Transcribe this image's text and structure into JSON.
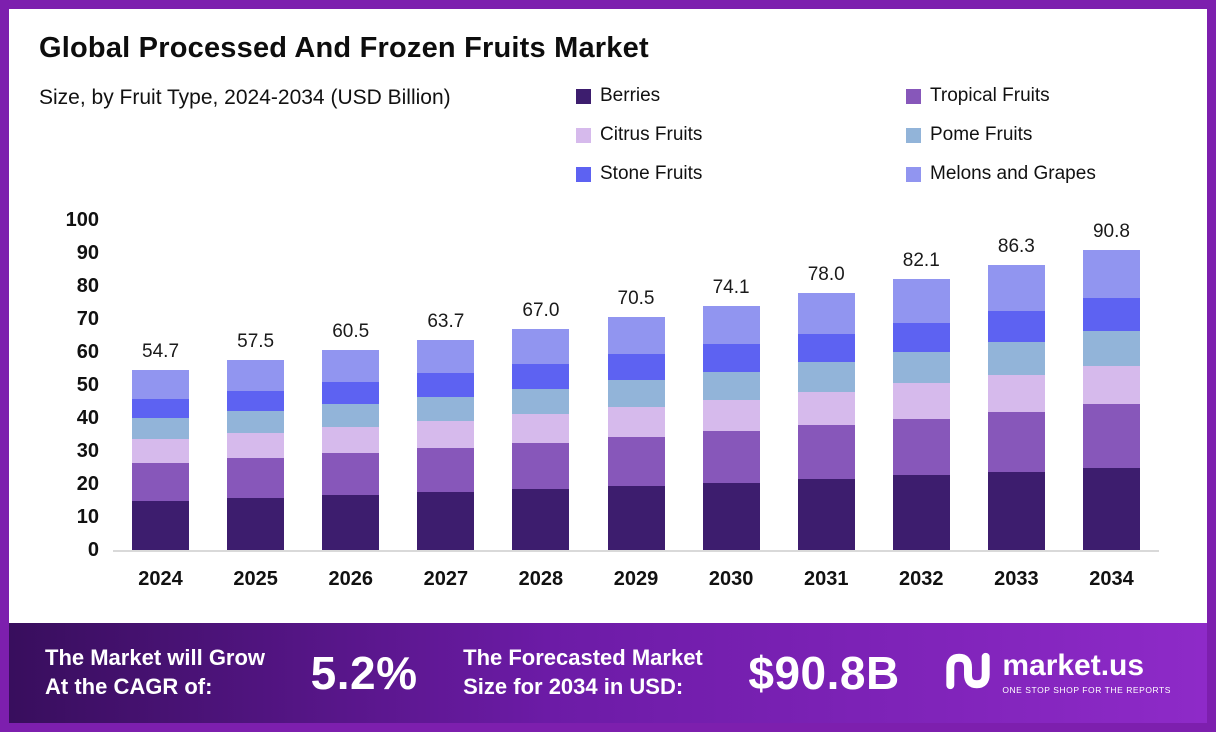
{
  "page": {
    "frame_color": "#7d1fae",
    "background": "#ffffff"
  },
  "header": {
    "title": "Global Processed And Frozen Fruits Market",
    "subtitle": "Size, by Fruit Type, 2024-2034 (USD Billion)"
  },
  "legend": {
    "items": [
      {
        "label": "Berries",
        "color": "#3d1d6e"
      },
      {
        "label": "Tropical Fruits",
        "color": "#8757ba"
      },
      {
        "label": "Citrus Fruits",
        "color": "#d6baec"
      },
      {
        "label": "Pome Fruits",
        "color": "#92b4d9"
      },
      {
        "label": "Stone Fruits",
        "color": "#5d62f2"
      },
      {
        "label": "Melons and Grapes",
        "color": "#9195f0"
      }
    ]
  },
  "chart_data": {
    "type": "bar",
    "stacked": true,
    "title": "Global Processed And Frozen Fruits Market",
    "subtitle": "Size, by Fruit Type, 2024-2034 (USD Billion)",
    "unit": "USD Billion",
    "categories": [
      "2024",
      "2025",
      "2026",
      "2027",
      "2028",
      "2029",
      "2030",
      "2031",
      "2032",
      "2033",
      "2034"
    ],
    "totals": [
      54.7,
      57.5,
      60.5,
      63.7,
      67.0,
      70.5,
      74.1,
      78.0,
      82.1,
      86.3,
      90.8
    ],
    "series": [
      {
        "name": "Berries",
        "color": "#3d1d6e",
        "values": [
          15.0,
          15.8,
          16.6,
          17.5,
          18.4,
          19.4,
          20.4,
          21.5,
          22.6,
          23.7,
          25.0
        ]
      },
      {
        "name": "Tropical Fruits",
        "color": "#8757ba",
        "values": [
          11.5,
          12.1,
          12.7,
          13.4,
          14.1,
          14.8,
          15.6,
          16.4,
          17.2,
          18.1,
          19.1
        ]
      },
      {
        "name": "Citrus Fruits",
        "color": "#d6baec",
        "values": [
          7.1,
          7.5,
          7.9,
          8.3,
          8.7,
          9.2,
          9.6,
          10.1,
          10.7,
          11.2,
          11.8
        ]
      },
      {
        "name": "Pome Fruits",
        "color": "#92b4d9",
        "values": [
          6.3,
          6.6,
          7.0,
          7.3,
          7.7,
          8.1,
          8.5,
          9.0,
          9.4,
          9.9,
          10.4
        ]
      },
      {
        "name": "Stone Fruits",
        "color": "#5d62f2",
        "values": [
          6.0,
          6.3,
          6.7,
          7.0,
          7.4,
          7.8,
          8.2,
          8.6,
          9.0,
          9.5,
          10.0
        ]
      },
      {
        "name": "Melons and Grapes",
        "color": "#9195f0",
        "values": [
          8.8,
          9.2,
          9.6,
          10.2,
          10.7,
          11.2,
          11.8,
          12.4,
          13.2,
          13.9,
          14.5
        ]
      }
    ],
    "ylim": [
      0,
      100
    ],
    "y_ticks": [
      0,
      10,
      20,
      30,
      40,
      50,
      60,
      70,
      80,
      90,
      100
    ],
    "grid": false,
    "legend_position": "top-right",
    "value_labels": "total above each bar"
  },
  "footer": {
    "cagr_label_line1": "The Market will Grow",
    "cagr_label_line2": "At the CAGR of:",
    "cagr_value": "5.2%",
    "forecast_label_line1": "The Forecasted Market",
    "forecast_label_line2": "Size for 2034 in USD:",
    "forecast_value": "$90.8B",
    "brand_name": "market.us",
    "brand_tagline": "ONE STOP SHOP FOR THE REPORTS"
  }
}
